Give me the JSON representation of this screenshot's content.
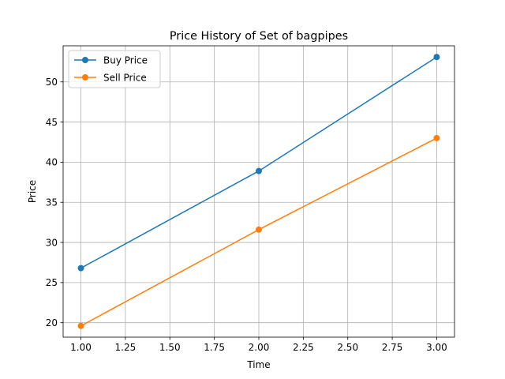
{
  "chart_data": {
    "type": "line",
    "title": "Price History of Set of bagpipes",
    "xlabel": "Time",
    "ylabel": "Price",
    "x": [
      1.0,
      2.0,
      3.0
    ],
    "xlim": [
      0.9,
      3.1
    ],
    "ylim": [
      18.2,
      54.5
    ],
    "xticks": [
      "1.00",
      "1.25",
      "1.50",
      "1.75",
      "2.00",
      "2.25",
      "2.50",
      "2.75",
      "3.00"
    ],
    "yticks": [
      "20",
      "25",
      "30",
      "35",
      "40",
      "45",
      "50"
    ],
    "grid": true,
    "legend_position": "top-left",
    "series": [
      {
        "name": "Buy Price",
        "color": "#1f77b4",
        "marker": "circle",
        "values": [
          26.8,
          38.9,
          53.1
        ]
      },
      {
        "name": "Sell Price",
        "color": "#ff7f0e",
        "marker": "circle",
        "values": [
          19.6,
          31.6,
          43.0
        ]
      }
    ]
  }
}
